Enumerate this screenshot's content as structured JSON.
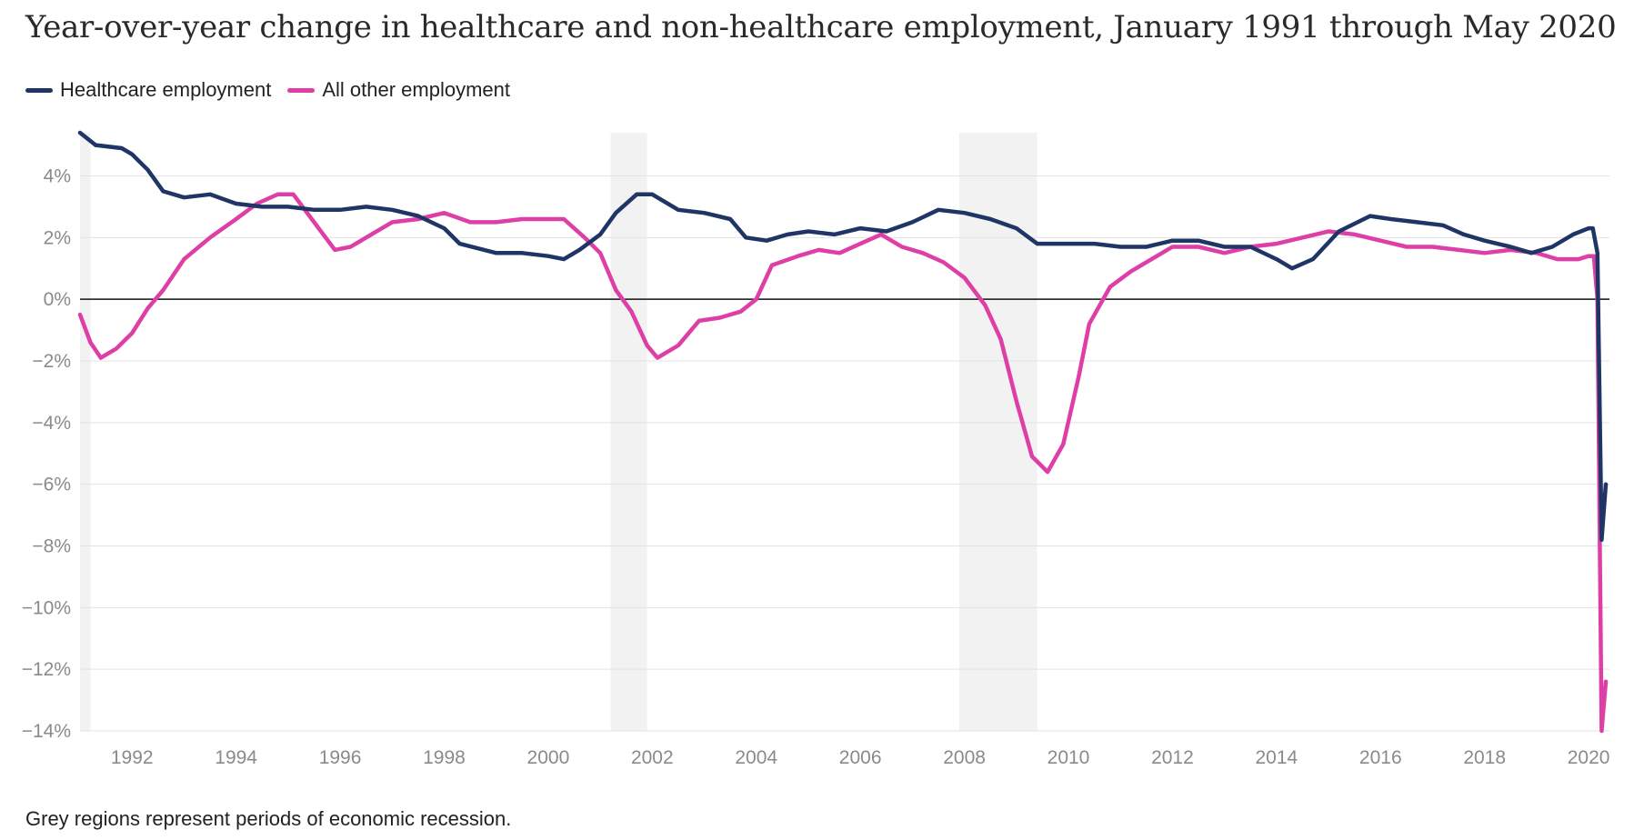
{
  "title": "Year-over-year change in healthcare and non-healthcare employment, January 1991 through May 2020",
  "footnote": "Grey regions represent periods of economic recession.",
  "colors": {
    "healthcare": "#1f3566",
    "other": "#de3fa6",
    "recession": "#f2f2f2",
    "grid": "#e3e3e3",
    "zero": "#111111"
  },
  "chart_data": {
    "type": "line",
    "xlim": [
      1991.0,
      2020.4
    ],
    "ylim": [
      -14,
      5.4
    ],
    "x_ticks": [
      1992,
      1994,
      1996,
      1998,
      2000,
      2002,
      2004,
      2006,
      2008,
      2010,
      2012,
      2014,
      2016,
      2018,
      2020
    ],
    "x_tick_labels": [
      "1992",
      "1994",
      "1996",
      "1998",
      "2000",
      "2002",
      "2004",
      "2006",
      "2008",
      "2010",
      "2012",
      "2014",
      "2016",
      "2018",
      "2020"
    ],
    "y_ticks": [
      4,
      2,
      0,
      -2,
      -4,
      -6,
      -8,
      -10,
      -12,
      -14
    ],
    "y_tick_labels": [
      "4%",
      "2%",
      "0%",
      "−2%",
      "−4%",
      "−6%",
      "−8%",
      "−10%",
      "−12%",
      "−14%"
    ],
    "recessions": [
      [
        1991.0,
        1991.2
      ],
      [
        2001.2,
        2001.9
      ],
      [
        2007.9,
        2009.4
      ]
    ],
    "series": [
      {
        "name": "Healthcare employment",
        "key": "healthcare",
        "points": [
          [
            1991.0,
            5.4
          ],
          [
            1991.3,
            5.0
          ],
          [
            1991.8,
            4.9
          ],
          [
            1992.0,
            4.7
          ],
          [
            1992.3,
            4.2
          ],
          [
            1992.6,
            3.5
          ],
          [
            1993.0,
            3.3
          ],
          [
            1993.5,
            3.4
          ],
          [
            1994.0,
            3.1
          ],
          [
            1994.5,
            3.0
          ],
          [
            1995.0,
            3.0
          ],
          [
            1995.5,
            2.9
          ],
          [
            1996.0,
            2.9
          ],
          [
            1996.5,
            3.0
          ],
          [
            1997.0,
            2.9
          ],
          [
            1997.5,
            2.7
          ],
          [
            1998.0,
            2.3
          ],
          [
            1998.3,
            1.8
          ],
          [
            1999.0,
            1.5
          ],
          [
            1999.5,
            1.5
          ],
          [
            2000.0,
            1.4
          ],
          [
            2000.3,
            1.3
          ],
          [
            2000.6,
            1.6
          ],
          [
            2001.0,
            2.1
          ],
          [
            2001.3,
            2.8
          ],
          [
            2001.7,
            3.4
          ],
          [
            2002.0,
            3.4
          ],
          [
            2002.5,
            2.9
          ],
          [
            2003.0,
            2.8
          ],
          [
            2003.5,
            2.6
          ],
          [
            2003.8,
            2.0
          ],
          [
            2004.2,
            1.9
          ],
          [
            2004.6,
            2.1
          ],
          [
            2005.0,
            2.2
          ],
          [
            2005.5,
            2.1
          ],
          [
            2006.0,
            2.3
          ],
          [
            2006.5,
            2.2
          ],
          [
            2007.0,
            2.5
          ],
          [
            2007.5,
            2.9
          ],
          [
            2008.0,
            2.8
          ],
          [
            2008.5,
            2.6
          ],
          [
            2009.0,
            2.3
          ],
          [
            2009.4,
            1.8
          ],
          [
            2010.0,
            1.8
          ],
          [
            2010.5,
            1.8
          ],
          [
            2011.0,
            1.7
          ],
          [
            2011.5,
            1.7
          ],
          [
            2012.0,
            1.9
          ],
          [
            2012.5,
            1.9
          ],
          [
            2013.0,
            1.7
          ],
          [
            2013.5,
            1.7
          ],
          [
            2014.0,
            1.3
          ],
          [
            2014.3,
            1.0
          ],
          [
            2014.7,
            1.3
          ],
          [
            2015.2,
            2.2
          ],
          [
            2015.8,
            2.7
          ],
          [
            2016.2,
            2.6
          ],
          [
            2016.7,
            2.5
          ],
          [
            2017.2,
            2.4
          ],
          [
            2017.6,
            2.1
          ],
          [
            2018.0,
            1.9
          ],
          [
            2018.5,
            1.7
          ],
          [
            2018.9,
            1.5
          ],
          [
            2019.3,
            1.7
          ],
          [
            2019.7,
            2.1
          ],
          [
            2020.0,
            2.3
          ],
          [
            2020.08,
            2.3
          ],
          [
            2020.17,
            1.5
          ],
          [
            2020.25,
            -7.8
          ],
          [
            2020.33,
            -6.0
          ]
        ]
      },
      {
        "name": "All other employment",
        "key": "other",
        "points": [
          [
            1991.0,
            -0.5
          ],
          [
            1991.2,
            -1.4
          ],
          [
            1991.4,
            -1.9
          ],
          [
            1991.7,
            -1.6
          ],
          [
            1992.0,
            -1.1
          ],
          [
            1992.3,
            -0.3
          ],
          [
            1992.6,
            0.3
          ],
          [
            1993.0,
            1.3
          ],
          [
            1993.5,
            2.0
          ],
          [
            1994.0,
            2.6
          ],
          [
            1994.4,
            3.1
          ],
          [
            1994.8,
            3.4
          ],
          [
            1995.1,
            3.4
          ],
          [
            1995.5,
            2.5
          ],
          [
            1995.9,
            1.6
          ],
          [
            1996.2,
            1.7
          ],
          [
            1996.6,
            2.1
          ],
          [
            1997.0,
            2.5
          ],
          [
            1997.5,
            2.6
          ],
          [
            1998.0,
            2.8
          ],
          [
            1998.5,
            2.5
          ],
          [
            1999.0,
            2.5
          ],
          [
            1999.5,
            2.6
          ],
          [
            2000.0,
            2.6
          ],
          [
            2000.3,
            2.6
          ],
          [
            2000.7,
            2.0
          ],
          [
            2001.0,
            1.5
          ],
          [
            2001.3,
            0.3
          ],
          [
            2001.6,
            -0.4
          ],
          [
            2001.9,
            -1.5
          ],
          [
            2002.1,
            -1.9
          ],
          [
            2002.5,
            -1.5
          ],
          [
            2002.9,
            -0.7
          ],
          [
            2003.3,
            -0.6
          ],
          [
            2003.7,
            -0.4
          ],
          [
            2004.0,
            0.0
          ],
          [
            2004.3,
            1.1
          ],
          [
            2004.8,
            1.4
          ],
          [
            2005.2,
            1.6
          ],
          [
            2005.6,
            1.5
          ],
          [
            2006.0,
            1.8
          ],
          [
            2006.4,
            2.1
          ],
          [
            2006.8,
            1.7
          ],
          [
            2007.2,
            1.5
          ],
          [
            2007.6,
            1.2
          ],
          [
            2008.0,
            0.7
          ],
          [
            2008.4,
            -0.2
          ],
          [
            2008.7,
            -1.3
          ],
          [
            2009.0,
            -3.3
          ],
          [
            2009.3,
            -5.1
          ],
          [
            2009.6,
            -5.6
          ],
          [
            2009.9,
            -4.7
          ],
          [
            2010.2,
            -2.5
          ],
          [
            2010.4,
            -0.8
          ],
          [
            2010.8,
            0.4
          ],
          [
            2011.2,
            0.9
          ],
          [
            2011.6,
            1.3
          ],
          [
            2012.0,
            1.7
          ],
          [
            2012.5,
            1.7
          ],
          [
            2013.0,
            1.5
          ],
          [
            2013.5,
            1.7
          ],
          [
            2014.0,
            1.8
          ],
          [
            2014.5,
            2.0
          ],
          [
            2015.0,
            2.2
          ],
          [
            2015.5,
            2.1
          ],
          [
            2016.0,
            1.9
          ],
          [
            2016.5,
            1.7
          ],
          [
            2017.0,
            1.7
          ],
          [
            2017.5,
            1.6
          ],
          [
            2018.0,
            1.5
          ],
          [
            2018.5,
            1.6
          ],
          [
            2019.0,
            1.5
          ],
          [
            2019.4,
            1.3
          ],
          [
            2019.8,
            1.3
          ],
          [
            2020.0,
            1.4
          ],
          [
            2020.1,
            1.4
          ],
          [
            2020.17,
            0.0
          ],
          [
            2020.25,
            -14.0
          ],
          [
            2020.33,
            -12.4
          ]
        ]
      }
    ]
  }
}
